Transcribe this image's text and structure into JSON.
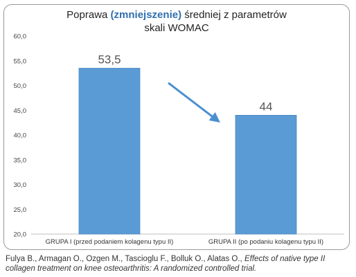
{
  "chart_data": {
    "type": "bar",
    "title_parts": {
      "before": "Poprawa ",
      "emphasis": "(zmniejszenie)",
      "after": " średniej z parametrów",
      "line2": "skali WOMAC"
    },
    "categories": [
      "GRUPA I (przed podaniem kolagenu typu II)",
      "GRUPA II (po podaniu kolagenu typu II)"
    ],
    "values": [
      53.5,
      44
    ],
    "data_labels": [
      "53,5",
      "44"
    ],
    "ylim": [
      20,
      60
    ],
    "yticks": [
      "20,0",
      "25,0",
      "30,0",
      "35,0",
      "40,0",
      "45,0",
      "50,0",
      "55,0",
      "60,0"
    ],
    "grid": false,
    "legend": "none",
    "annotation": "arrow-from-bar-1-to-bar-2",
    "colors": {
      "bar": "#5b9bd5",
      "bar_edge": "#4a89c4",
      "arrow": "#4a90d0",
      "emphasis": "#2f6fb0"
    }
  },
  "citation": {
    "authors": "Fulya B., Armagan O., Ozgen M., Tascioglu F., Bolluk O., Alatas O.,",
    "title": "Effects of native type II collagen treatment on knee osteoarthritis: A randomized controlled trial."
  }
}
